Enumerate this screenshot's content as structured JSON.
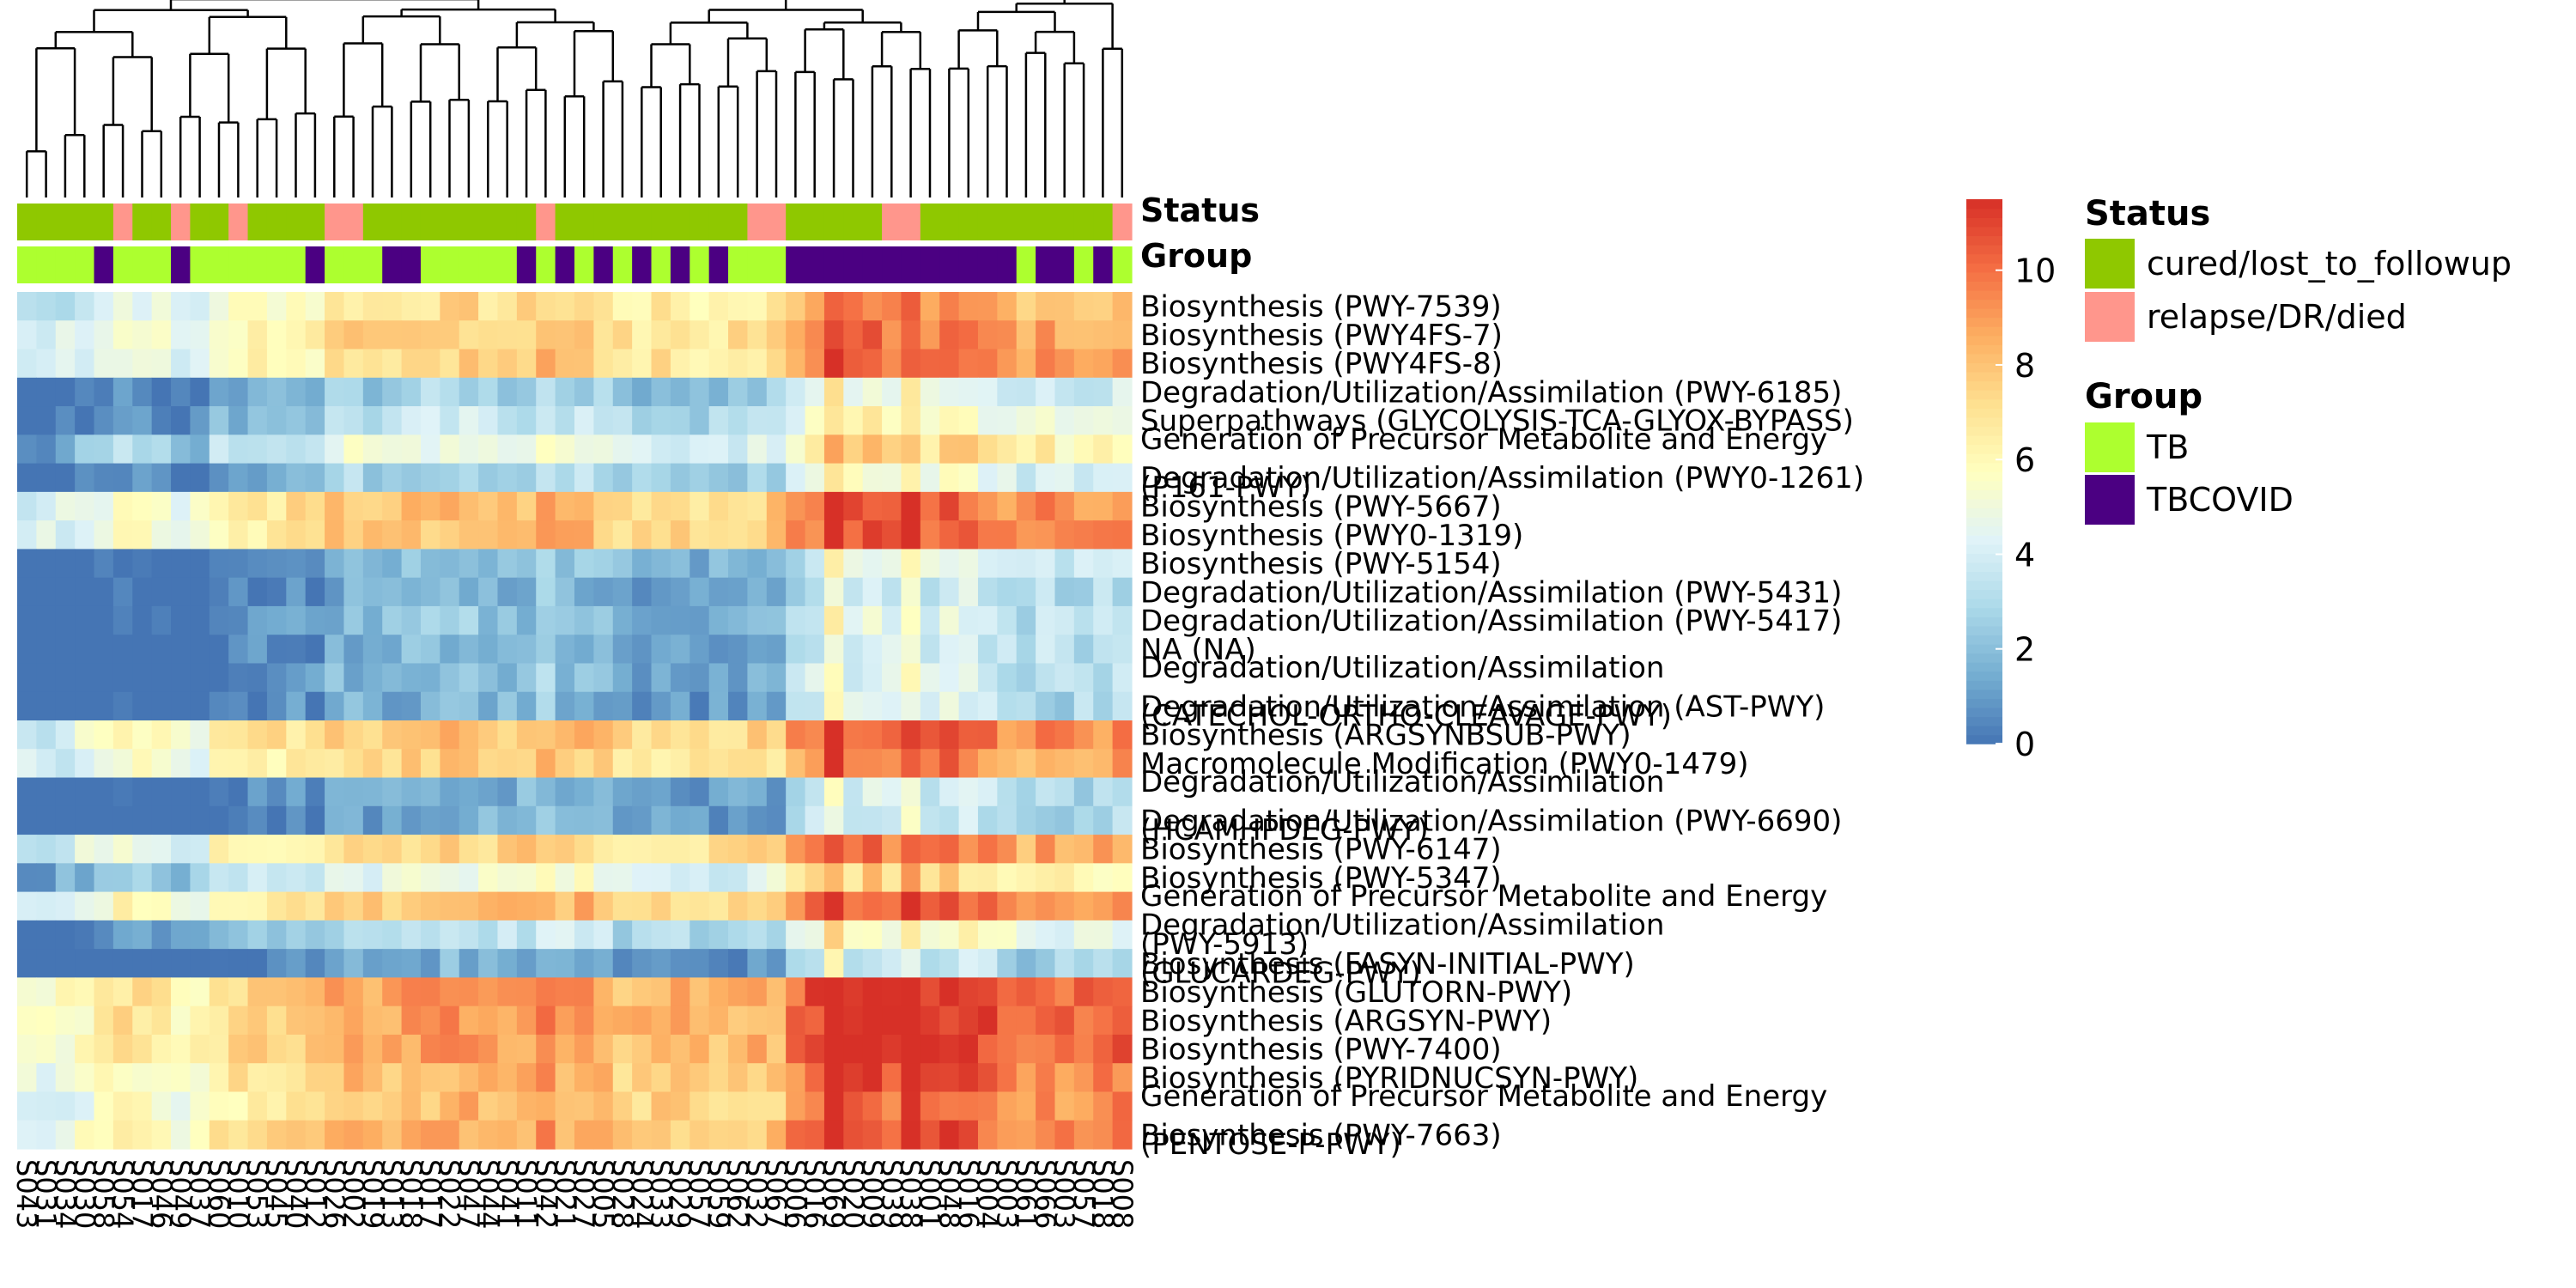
{
  "chart_data": {
    "type": "heatmap",
    "title": "",
    "columns": [
      "S043",
      "S031",
      "S034",
      "S030",
      "S058",
      "S054",
      "S017",
      "S046",
      "S049",
      "S037",
      "S060",
      "S010",
      "S053",
      "S045",
      "S040",
      "S012",
      "S026",
      "S002",
      "S019",
      "S013",
      "S018",
      "S017",
      "S022",
      "S047",
      "S044",
      "S041",
      "S011",
      "S042",
      "S021",
      "S027",
      "S005",
      "S028",
      "S024",
      "S033",
      "S029",
      "S057",
      "S059",
      "S062",
      "S032",
      "S067",
      "S006",
      "S016",
      "S069",
      "S020",
      "S009",
      "S039",
      "S038",
      "S001",
      "S048",
      "S016",
      "S004",
      "S003",
      "S061",
      "S066",
      "S003",
      "S057",
      "S018",
      "S008"
    ],
    "rows": [
      "Biosynthesis (PWY-7539)",
      "Biosynthesis (PWY4FS-7)",
      "Biosynthesis (PWY4FS-8)",
      "Degradation/Utilization/Assimilation (PWY-6185)",
      "Superpathways (GLYCOLYSIS-TCA-GLYOX-BYPASS)",
      "Generation of Precursor Metabolite and Energy (P161-PWY)",
      "Degradation/Utilization/Assimilation (PWY0-1261)",
      "Biosynthesis (PWY-5667)",
      "Biosynthesis (PWY0-1319)",
      "Biosynthesis (PWY-5154)",
      "Degradation/Utilization/Assimilation (PWY-5431)",
      "Degradation/Utilization/Assimilation (PWY-5417)",
      "NA (NA)",
      "Degradation/Utilization/Assimilation (CATECHOL-ORTHO-CLEAVAGE-PWY)",
      "Degradation/Utilization/Assimilation (AST-PWY)",
      "Biosynthesis (ARGSYNBSUB-PWY)",
      "Macromolecule Modification (PWY0-1479)",
      "Degradation/Utilization/Assimilation (HCAMHPDEG-PWY)",
      "Degradation/Utilization/Assimilation (PWY-6690)",
      "Biosynthesis (PWY-6147)",
      "Biosynthesis (PWY-5347)",
      "Generation of Precursor Metabolite and Energy (PWY-5913)",
      "Degradation/Utilization/Assimilation (GLUCARDEG-PWY)",
      "Biosynthesis (FASYN-INITIAL-PWY)",
      "Biosynthesis (GLUTORN-PWY)",
      "Biosynthesis (ARGSYN-PWY)",
      "Biosynthesis (PWY-7400)",
      "Biosynthesis (PYRIDNUCSYN-PWY)",
      "Generation of Precursor Metabolite and Energy (PENTOSE-P-PWY)",
      "Biosynthesis (PWY-7663)"
    ],
    "row_label_lines": [
      [
        "Biosynthesis (PWY-7539)"
      ],
      [
        "Biosynthesis (PWY4FS-7)"
      ],
      [
        "Biosynthesis (PWY4FS-8)"
      ],
      [
        "Degradation/Utilization/Assimilation (PWY-6185)"
      ],
      [
        "Superpathways (GLYCOLYSIS-TCA-GLYOX-BYPASS)"
      ],
      [
        "Generation of Precursor Metabolite and Energy",
        "(P161-PWY)"
      ],
      [
        "Degradation/Utilization/Assimilation (PWY0-1261)"
      ],
      [
        "Biosynthesis (PWY-5667)"
      ],
      [
        "Biosynthesis (PWY0-1319)"
      ],
      [
        "Biosynthesis (PWY-5154)"
      ],
      [
        "Degradation/Utilization/Assimilation (PWY-5431)"
      ],
      [
        "Degradation/Utilization/Assimilation (PWY-5417)"
      ],
      [
        "NA (NA)"
      ],
      [
        "Degradation/Utilization/Assimilation",
        "(CATECHOL-ORTHO-CLEAVAGE-PWY)"
      ],
      [
        "Degradation/Utilization/Assimilation (AST-PWY)"
      ],
      [
        "Biosynthesis (ARGSYNBSUB-PWY)"
      ],
      [
        "Macromolecule Modification (PWY0-1479)"
      ],
      [
        "Degradation/Utilization/Assimilation",
        "(HCAMHPDEG-PWY)"
      ],
      [
        "Degradation/Utilization/Assimilation (PWY-6690)"
      ],
      [
        "Biosynthesis (PWY-6147)"
      ],
      [
        "Biosynthesis (PWY-5347)"
      ],
      [
        "Generation of Precursor Metabolite and Energy",
        "(PWY-5913)"
      ],
      [
        "Degradation/Utilization/Assimilation",
        "(GLUCARDEG-PWY)"
      ],
      [
        "Biosynthesis (FASYN-INITIAL-PWY)"
      ],
      [
        "Biosynthesis (GLUTORN-PWY)"
      ],
      [
        "Biosynthesis (ARGSYN-PWY)"
      ],
      [
        "Biosynthesis (PWY-7400)"
      ],
      [
        "Biosynthesis (PYRIDNUCSYN-PWY)"
      ],
      [
        "Generation of Precursor Metabolite and Energy",
        "(PENTOSE-P-PWY)"
      ],
      [
        "Biosynthesis (PWY-7663)"
      ]
    ],
    "status": [
      "cured",
      "cured",
      "cured",
      "cured",
      "cured",
      "relapse",
      "cured",
      "cured",
      "relapse",
      "cured",
      "cured",
      "relapse",
      "cured",
      "cured",
      "cured",
      "cured",
      "relapse",
      "relapse",
      "cured",
      "cured",
      "cured",
      "cured",
      "cured",
      "cured",
      "cured",
      "cured",
      "cured",
      "relapse",
      "cured",
      "cured",
      "cured",
      "cured",
      "cured",
      "cured",
      "cured",
      "cured",
      "cured",
      "cured",
      "relapse",
      "relapse",
      "cured",
      "cured",
      "cured",
      "cured",
      "cured",
      "relapse",
      "relapse",
      "cured",
      "cured",
      "cured",
      "cured",
      "cured",
      "cured",
      "cured",
      "cured",
      "cured",
      "cured",
      "relapse"
    ],
    "group": [
      "TB",
      "TB",
      "TB",
      "TB",
      "TBCOVID",
      "TB",
      "TB",
      "TB",
      "TBCOVID",
      "TB",
      "TB",
      "TB",
      "TB",
      "TB",
      "TB",
      "TBCOVID",
      "TB",
      "TB",
      "TB",
      "TBCOVID",
      "TBCOVID",
      "TB",
      "TB",
      "TB",
      "TB",
      "TB",
      "TBCOVID",
      "TB",
      "TBCOVID",
      "TB",
      "TBCOVID",
      "TB",
      "TBCOVID",
      "TB",
      "TBCOVID",
      "TB",
      "TBCOVID",
      "TB",
      "TB",
      "TB",
      "TBCOVID",
      "TBCOVID",
      "TBCOVID",
      "TBCOVID",
      "TBCOVID",
      "TBCOVID",
      "TBCOVID",
      "TBCOVID",
      "TBCOVID",
      "TBCOVID",
      "TBCOVID",
      "TBCOVID",
      "TB",
      "TBCOVID",
      "TBCOVID",
      "TB",
      "TBCOVID",
      "TB"
    ],
    "row_base": [
      6.5,
      7,
      7,
      2.2,
      3,
      4.5,
      2.5,
      7.5,
      7.5,
      1.8,
      1.2,
      1.6,
      1.3,
      1.5,
      1.2,
      7.5,
      7,
      1.2,
      1,
      7,
      4.5,
      7.5,
      3,
      1,
      8.5,
      8.5,
      8.3,
      7.8,
      7.5,
      8
    ],
    "col_offset": [
      -3.2,
      -3.5,
      -3,
      -2.5,
      -2.2,
      -1.5,
      -1.6,
      -2,
      -2.5,
      -2.4,
      -1.2,
      -1,
      -0.8,
      -0.6,
      -0.5,
      -0.7,
      0.2,
      0.4,
      0.2,
      0.3,
      0.5,
      0.6,
      0.7,
      0.8,
      0.5,
      0.4,
      0.6,
      1.2,
      0.7,
      0.8,
      0.3,
      -0.2,
      -0.1,
      0,
      0,
      -0.3,
      -0.2,
      -0.1,
      0.1,
      0.2,
      1.5,
      2.5,
      4.5,
      2.8,
      3.2,
      2.5,
      4,
      2.6,
      3,
      2.8,
      2.2,
      1.8,
      1.5,
      2,
      1.6,
      1.8,
      1.8,
      2
    ],
    "value_range": [
      0,
      11.5
    ],
    "colorbar_ticks": [
      0,
      2,
      4,
      6,
      8,
      10
    ],
    "colors": [
      "#4575b4",
      "#74add1",
      "#abd9e9",
      "#e0f3f8",
      "#ffffbf",
      "#fee090",
      "#fdae61",
      "#f46d43",
      "#d73027"
    ],
    "status_colors": {
      "cured": "#8fc800",
      "relapse": "#ff968c"
    },
    "group_colors": {
      "TB": "#adff2f",
      "TBCOVID": "#4b0082"
    },
    "annotation_labels": {
      "status": "Status",
      "group": "Group"
    },
    "legend": {
      "status_title": "Status",
      "status_items": [
        {
          "key": "cured",
          "label": "cured/lost_to_followup",
          "color": "#8fc800"
        },
        {
          "key": "relapse",
          "label": "relapse/DR/died",
          "color": "#ff968c"
        }
      ],
      "group_title": "Group",
      "group_items": [
        {
          "key": "TB",
          "label": "TB",
          "color": "#adff2f"
        },
        {
          "key": "TBCOVID",
          "label": "TBCOVID",
          "color": "#4b0082"
        }
      ]
    },
    "dendrogram": {
      "clustered": true,
      "position": "top"
    },
    "legend_position": "right"
  }
}
